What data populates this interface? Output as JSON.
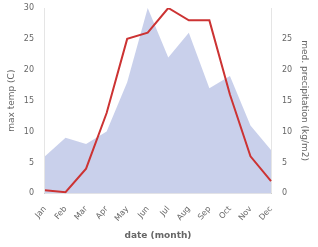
{
  "chart_data": {
    "type": "line",
    "categories": [
      "Jan",
      "Feb",
      "Mar",
      "Apr",
      "May",
      "Jun",
      "Jul",
      "Aug",
      "Sep",
      "Oct",
      "Nov",
      "Dec"
    ],
    "series": [
      {
        "type": "line",
        "color": "#cc3333",
        "values": [
          0.5,
          0.2,
          4,
          13,
          25,
          26,
          30,
          28,
          28,
          16,
          6,
          2
        ]
      },
      {
        "type": "area",
        "color": "#c0c8e8",
        "axis": "y2",
        "values": [
          6,
          9,
          8,
          10,
          18,
          30,
          22,
          26,
          17,
          19,
          11,
          7
        ]
      }
    ],
    "xlabel": "date (month)",
    "ylabel": "max temp (C)",
    "y2label": "med. precipitation (kg/m2)",
    "ylim": [
      0,
      30
    ],
    "yticks": [
      0,
      5,
      10,
      15,
      20,
      25,
      30
    ],
    "y2lim": [
      0,
      30
    ],
    "y2ticks": [
      0,
      5,
      10,
      15,
      20,
      25
    ],
    "grid": false
  }
}
